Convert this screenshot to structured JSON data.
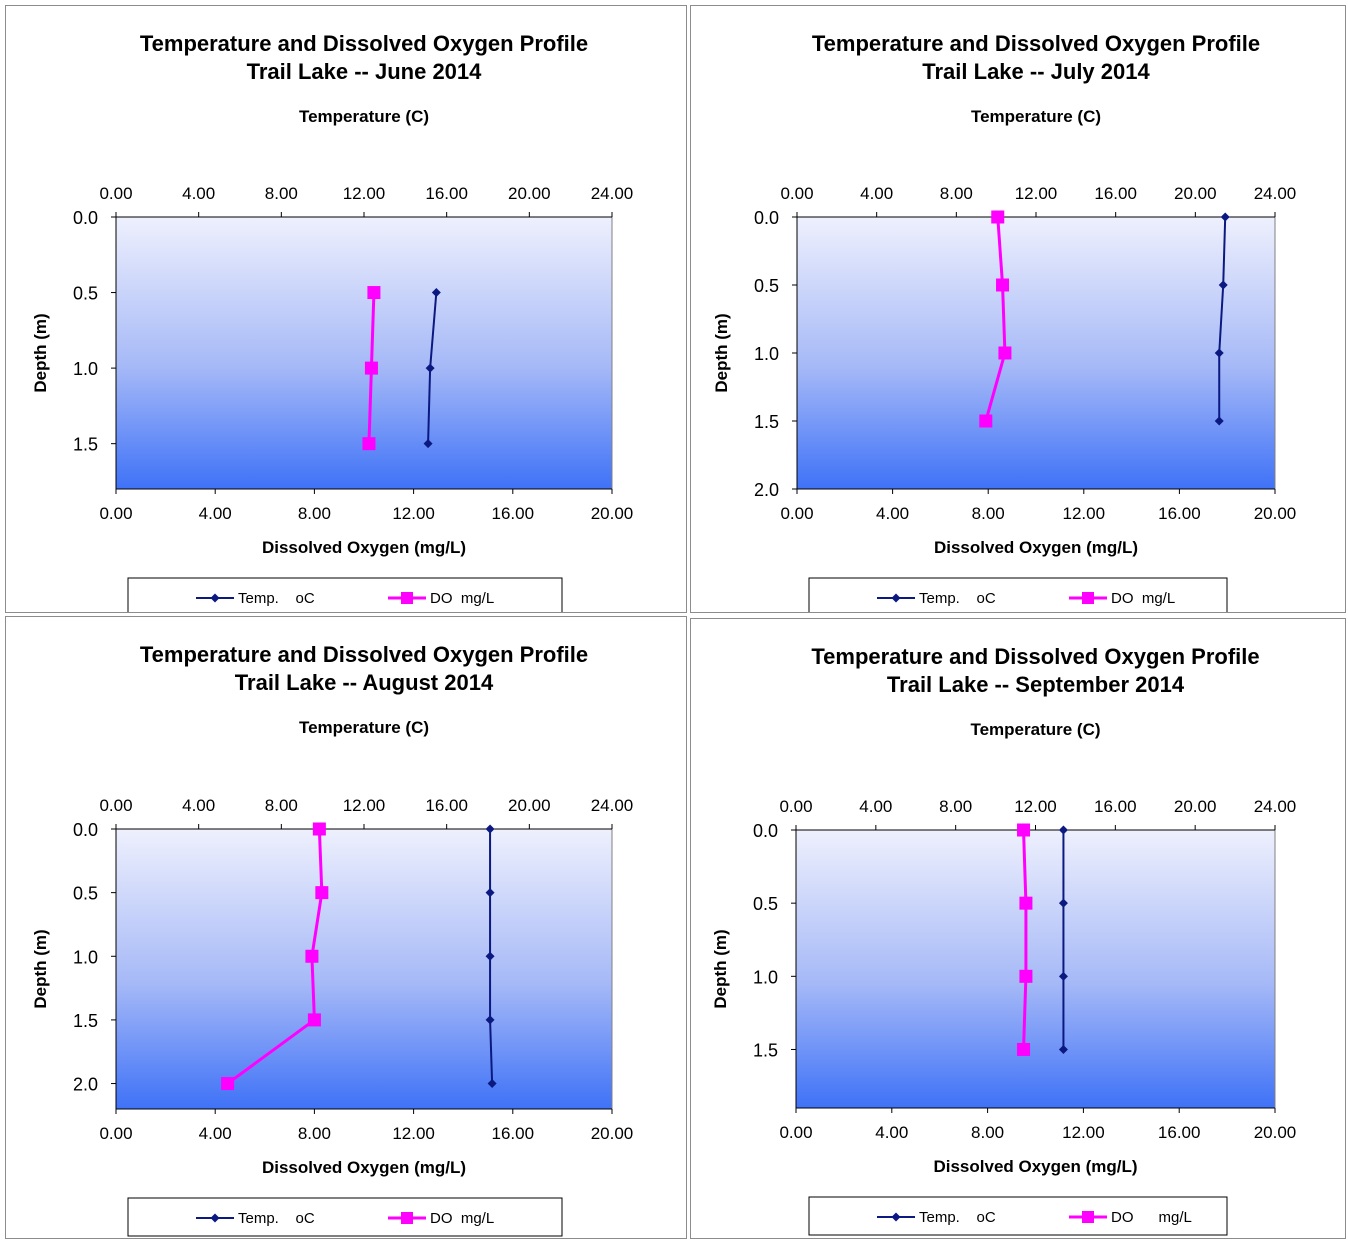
{
  "chart_data": [
    {
      "type": "line",
      "title": "Temperature and Dissolved Oxygen Profile",
      "subtitle": "Trail Lake -- June 2014",
      "x2label": "Temperature (C)",
      "xlabel": "Dissolved Oxygen (mg/L)",
      "ylabel": "Depth (m)",
      "x2lim": [
        0,
        24
      ],
      "x2ticks": [
        "0.00",
        "4.00",
        "8.00",
        "12.00",
        "16.00",
        "20.00",
        "24.00"
      ],
      "xlim": [
        0,
        20
      ],
      "xticks": [
        "0.00",
        "4.00",
        "8.00",
        "12.00",
        "16.00",
        "20.00"
      ],
      "ylim": [
        0,
        1.8
      ],
      "yticks": [
        "0.0",
        "0.5",
        "1.0",
        "1.5"
      ],
      "legend": [
        "Temp.    oC",
        "DO  mg/L"
      ],
      "series": [
        {
          "name": "Temp.    oC",
          "axis": "temperature",
          "color": "#0b1980",
          "marker": "diamond",
          "points": [
            [
              15.5,
              0.5
            ],
            [
              15.2,
              1.0
            ],
            [
              15.1,
              1.5
            ]
          ]
        },
        {
          "name": "DO  mg/L",
          "axis": "do",
          "color": "#ff00ff",
          "marker": "square",
          "points": [
            [
              10.4,
              0.5
            ],
            [
              10.3,
              1.0
            ],
            [
              10.2,
              1.5
            ]
          ]
        }
      ]
    },
    {
      "type": "line",
      "title": "Temperature and Dissolved Oxygen Profile",
      "subtitle": "Trail Lake -- July 2014",
      "x2label": "Temperature (C)",
      "xlabel": "Dissolved Oxygen (mg/L)",
      "ylabel": "Depth (m)",
      "x2lim": [
        0,
        24
      ],
      "x2ticks": [
        "0.00",
        "4.00",
        "8.00",
        "12.00",
        "16.00",
        "20.00",
        "24.00"
      ],
      "xlim": [
        0,
        20
      ],
      "xticks": [
        "0.00",
        "4.00",
        "8.00",
        "12.00",
        "16.00",
        "20.00"
      ],
      "ylim": [
        0,
        2.0
      ],
      "yticks": [
        "0.0",
        "0.5",
        "1.0",
        "1.5",
        "2.0"
      ],
      "legend": [
        "Temp.    oC",
        "DO  mg/L"
      ],
      "series": [
        {
          "name": "Temp.    oC",
          "axis": "temperature",
          "color": "#0b1980",
          "marker": "diamond",
          "points": [
            [
              21.5,
              0.0
            ],
            [
              21.4,
              0.5
            ],
            [
              21.2,
              1.0
            ],
            [
              21.2,
              1.5
            ]
          ]
        },
        {
          "name": "DO  mg/L",
          "axis": "do",
          "color": "#ff00ff",
          "marker": "square",
          "points": [
            [
              8.4,
              0.0
            ],
            [
              8.6,
              0.5
            ],
            [
              8.7,
              1.0
            ],
            [
              7.9,
              1.5
            ]
          ]
        }
      ]
    },
    {
      "type": "line",
      "title": "Temperature and Dissolved Oxygen Profile",
      "subtitle": "Trail Lake -- August 2014",
      "x2label": "Temperature (C)",
      "xlabel": "Dissolved Oxygen (mg/L)",
      "ylabel": "Depth (m)",
      "x2lim": [
        0,
        24
      ],
      "x2ticks": [
        "0.00",
        "4.00",
        "8.00",
        "12.00",
        "16.00",
        "20.00",
        "24.00"
      ],
      "xlim": [
        0,
        20
      ],
      "xticks": [
        "0.00",
        "4.00",
        "8.00",
        "12.00",
        "16.00",
        "20.00"
      ],
      "ylim": [
        0,
        2.2
      ],
      "yticks": [
        "0.0",
        "0.5",
        "1.0",
        "1.5",
        "2.0"
      ],
      "legend": [
        "Temp.    oC",
        "DO  mg/L"
      ],
      "series": [
        {
          "name": "Temp.    oC",
          "axis": "temperature",
          "color": "#0b1980",
          "marker": "diamond",
          "points": [
            [
              18.1,
              0.0
            ],
            [
              18.1,
              0.5
            ],
            [
              18.1,
              1.0
            ],
            [
              18.1,
              1.5
            ],
            [
              18.2,
              2.0
            ]
          ]
        },
        {
          "name": "DO  mg/L",
          "axis": "do",
          "color": "#ff00ff",
          "marker": "square",
          "points": [
            [
              8.2,
              0.0
            ],
            [
              8.3,
              0.5
            ],
            [
              7.9,
              1.0
            ],
            [
              8.0,
              1.5
            ],
            [
              4.5,
              2.0
            ]
          ]
        }
      ]
    },
    {
      "type": "line",
      "title": "Temperature and Dissolved Oxygen Profile",
      "subtitle": "Trail Lake -- September 2014",
      "x2label": "Temperature (C)",
      "xlabel": "Dissolved Oxygen (mg/L)",
      "ylabel": "Depth (m)",
      "x2lim": [
        0,
        24
      ],
      "x2ticks": [
        "0.00",
        "4.00",
        "8.00",
        "12.00",
        "16.00",
        "20.00",
        "24.00"
      ],
      "xlim": [
        0,
        20
      ],
      "xticks": [
        "0.00",
        "4.00",
        "8.00",
        "12.00",
        "16.00",
        "20.00"
      ],
      "ylim": [
        0,
        1.9
      ],
      "yticks": [
        "0.0",
        "0.5",
        "1.0",
        "1.5"
      ],
      "legend": [
        "Temp.    oC",
        "DO      mg/L"
      ],
      "series": [
        {
          "name": "Temp.    oC",
          "axis": "temperature",
          "color": "#0b1980",
          "marker": "diamond",
          "points": [
            [
              13.4,
              0.0
            ],
            [
              13.4,
              0.5
            ],
            [
              13.4,
              1.0
            ],
            [
              13.4,
              1.5
            ]
          ]
        },
        {
          "name": "DO      mg/L",
          "axis": "do",
          "color": "#ff00ff",
          "marker": "square",
          "points": [
            [
              9.5,
              0.0
            ],
            [
              9.6,
              0.5
            ],
            [
              9.6,
              1.0
            ],
            [
              9.5,
              1.5
            ]
          ]
        }
      ]
    }
  ]
}
